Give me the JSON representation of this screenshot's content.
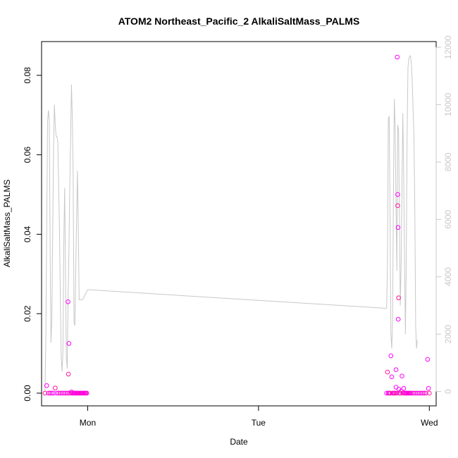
{
  "chart_data": {
    "type": "scatter",
    "title": "ATOM2 Northeast_Pacific_2 AlkaliSaltMass_PALMS",
    "xlabel": "Date",
    "ylabel": "AlkaliSaltMass_PALMS",
    "x_unit": "days",
    "xlim": [
      -0.27,
      2.04
    ],
    "ylim": [
      -0.0032,
      0.0885
    ],
    "y2lim": [
      -500,
      12200
    ],
    "x_ticks": [
      {
        "value": 0,
        "label": "Mon"
      },
      {
        "value": 1,
        "label": "Tue"
      },
      {
        "value": 2,
        "label": "Wed"
      }
    ],
    "y_ticks": [
      0.0,
      0.02,
      0.04,
      0.06,
      0.08
    ],
    "y_tick_labels": [
      "0.00",
      "0.02",
      "0.04",
      "0.06",
      "0.08"
    ],
    "y2_ticks": [
      0,
      2000,
      4000,
      6000,
      8000,
      10000,
      12000
    ],
    "y2_tick_labels": [
      "0",
      "2000",
      "4000",
      "6000",
      "8000",
      "10000",
      "12000"
    ],
    "grid": false,
    "colors": {
      "points": "#ff00ff",
      "points2": "#ff1493",
      "line": "#c8c8c8",
      "axis": "#000000",
      "axis2": "#c8c8c8"
    },
    "series": [
      {
        "role": "points",
        "axis": "left",
        "points": [
          [
            -0.25,
            0.0
          ],
          [
            -0.24,
            0.0019
          ],
          [
            -0.23,
            0.0
          ],
          [
            -0.22,
            0.0
          ],
          [
            -0.21,
            0.0
          ],
          [
            -0.2,
            0.0
          ],
          [
            -0.19,
            0.0013
          ],
          [
            -0.18,
            0.0
          ],
          [
            -0.17,
            0.0
          ],
          [
            -0.16,
            0.0
          ],
          [
            -0.15,
            0.0
          ],
          [
            -0.14,
            0.0
          ],
          [
            -0.13,
            0.0
          ],
          [
            -0.12,
            0.0
          ],
          [
            -0.11,
            0.0
          ],
          [
            -0.1,
            0.0
          ],
          [
            -0.095,
            0.0003
          ],
          [
            -0.09,
            0.0
          ],
          [
            -0.085,
            0.0
          ],
          [
            -0.115,
            0.023
          ],
          [
            -0.11,
            0.0125
          ],
          [
            -0.113,
            0.0048
          ],
          [
            -0.08,
            0.0
          ],
          [
            -0.075,
            0.0
          ],
          [
            -0.07,
            0.0
          ],
          [
            -0.065,
            0.0
          ],
          [
            -0.06,
            0.0
          ],
          [
            -0.055,
            0.0
          ],
          [
            -0.05,
            0.0
          ],
          [
            -0.045,
            0.0
          ],
          [
            -0.04,
            0.0
          ],
          [
            -0.035,
            0.0
          ],
          [
            -0.03,
            0.0
          ],
          [
            -0.025,
            0.0
          ],
          [
            -0.02,
            0.0
          ],
          [
            -0.015,
            0.0
          ],
          [
            -0.01,
            0.0
          ],
          [
            -0.005,
            0.0
          ],
          [
            1.75,
            0.0
          ],
          [
            1.755,
            0.0053
          ],
          [
            1.76,
            0.0
          ],
          [
            1.765,
            0.0
          ],
          [
            1.77,
            0.0
          ],
          [
            1.775,
            0.0094
          ],
          [
            1.78,
            0.0041
          ],
          [
            1.785,
            0.0
          ],
          [
            1.79,
            0.0
          ],
          [
            1.795,
            0.0
          ],
          [
            1.8,
            0.0
          ],
          [
            1.805,
            0.0015
          ],
          [
            1.805,
            0.0059
          ],
          [
            1.81,
            0.0
          ],
          [
            1.812,
            0.0846
          ],
          [
            1.815,
            0.05
          ],
          [
            1.815,
            0.0472
          ],
          [
            1.817,
            0.0417
          ],
          [
            1.818,
            0.0186
          ],
          [
            1.82,
            0.024
          ],
          [
            1.822,
            0.001
          ],
          [
            1.825,
            0.0
          ],
          [
            1.83,
            0.0
          ],
          [
            1.835,
            0.0005
          ],
          [
            1.84,
            0.0043
          ],
          [
            1.845,
            0.0
          ],
          [
            1.85,
            0.0012
          ],
          [
            1.855,
            0.0
          ],
          [
            1.86,
            0.0
          ],
          [
            1.865,
            0.0
          ],
          [
            1.87,
            0.0
          ],
          [
            1.875,
            0.0
          ],
          [
            1.88,
            0.0
          ],
          [
            1.885,
            0.0
          ],
          [
            1.89,
            0.0
          ],
          [
            1.9,
            0.0
          ],
          [
            1.91,
            0.0
          ],
          [
            1.92,
            0.0
          ],
          [
            1.93,
            0.0
          ],
          [
            1.94,
            0.0
          ],
          [
            1.95,
            0.0
          ],
          [
            1.96,
            0.0
          ],
          [
            1.97,
            0.0
          ],
          [
            1.98,
            0.0
          ],
          [
            1.99,
            0.0085
          ],
          [
            1.995,
            0.0012
          ],
          [
            2.0,
            0.0
          ]
        ]
      },
      {
        "role": "line",
        "axis": "right",
        "points": [
          [
            -0.25,
            0
          ],
          [
            -0.245,
            1800
          ],
          [
            -0.24,
            5500
          ],
          [
            -0.235,
            9400
          ],
          [
            -0.23,
            9800
          ],
          [
            -0.225,
            9500
          ],
          [
            -0.22,
            5000
          ],
          [
            -0.215,
            1700
          ],
          [
            -0.21,
            2500
          ],
          [
            -0.205,
            5500
          ],
          [
            -0.2,
            8400
          ],
          [
            -0.195,
            10000
          ],
          [
            -0.19,
            9300
          ],
          [
            -0.185,
            8900
          ],
          [
            -0.18,
            8900
          ],
          [
            -0.175,
            8700
          ],
          [
            -0.17,
            7200
          ],
          [
            -0.165,
            5600
          ],
          [
            -0.16,
            3200
          ],
          [
            -0.155,
            1200
          ],
          [
            -0.15,
            700
          ],
          [
            -0.145,
            1400
          ],
          [
            -0.14,
            5100
          ],
          [
            -0.135,
            7100
          ],
          [
            -0.13,
            4200
          ],
          [
            -0.125,
            1200
          ],
          [
            -0.12,
            800
          ],
          [
            -0.115,
            3200
          ],
          [
            -0.11,
            4800
          ],
          [
            -0.105,
            7100
          ],
          [
            -0.1,
            8800
          ],
          [
            -0.095,
            10700
          ],
          [
            -0.09,
            9500
          ],
          [
            -0.085,
            7500
          ],
          [
            -0.08,
            2400
          ],
          [
            -0.075,
            2300
          ],
          [
            -0.07,
            4200
          ],
          [
            -0.065,
            6000
          ],
          [
            -0.06,
            7700
          ],
          [
            -0.055,
            5700
          ],
          [
            -0.05,
            3200
          ],
          [
            -0.03,
            3200
          ],
          [
            0.0,
            3550
          ],
          [
            1.75,
            2900
          ],
          [
            1.755,
            4500
          ],
          [
            1.76,
            9500
          ],
          [
            1.765,
            9600
          ],
          [
            1.77,
            6200
          ],
          [
            1.775,
            2000
          ],
          [
            1.78,
            1500
          ],
          [
            1.785,
            2500
          ],
          [
            1.79,
            7000
          ],
          [
            1.795,
            10200
          ],
          [
            1.8,
            9200
          ],
          [
            1.805,
            6500
          ],
          [
            1.81,
            4200
          ],
          [
            1.815,
            9300
          ],
          [
            1.82,
            9100
          ],
          [
            1.825,
            6000
          ],
          [
            1.83,
            3000
          ],
          [
            1.835,
            4500
          ],
          [
            1.84,
            7200
          ],
          [
            1.845,
            9700
          ],
          [
            1.85,
            7500
          ],
          [
            1.855,
            4500
          ],
          [
            1.86,
            2000
          ],
          [
            1.865,
            4600
          ],
          [
            1.87,
            9000
          ],
          [
            1.875,
            11300
          ],
          [
            1.88,
            11600
          ],
          [
            1.885,
            11700
          ],
          [
            1.89,
            11700
          ],
          [
            1.895,
            11400
          ],
          [
            1.9,
            10800
          ],
          [
            1.905,
            9800
          ],
          [
            1.91,
            8900
          ],
          [
            1.915,
            6400
          ],
          [
            1.92,
            2300
          ],
          [
            1.925,
            1500
          ],
          [
            1.93,
            1800
          ]
        ]
      }
    ]
  }
}
